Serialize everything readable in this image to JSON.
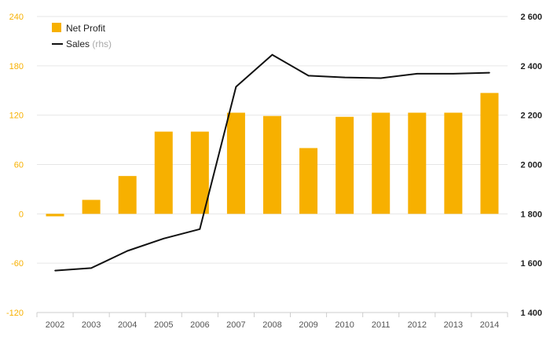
{
  "chart_data": {
    "type": "bar",
    "categories": [
      "2002",
      "2003",
      "2004",
      "2005",
      "2006",
      "2007",
      "2008",
      "2009",
      "2010",
      "2011",
      "2012",
      "2013",
      "2014"
    ],
    "series": [
      {
        "name": "Net Profit",
        "type": "bar",
        "axis": "left",
        "color": "#f7b000",
        "values": [
          -3,
          17,
          46,
          100,
          100,
          123,
          119,
          80,
          118,
          123,
          123,
          123,
          147
        ]
      },
      {
        "name": "Sales",
        "type": "line",
        "axis": "right",
        "color": "#111111",
        "values": [
          1570,
          1580,
          1650,
          1700,
          1738,
          2315,
          2445,
          2360,
          2353,
          2350,
          2368,
          2368,
          2372
        ]
      }
    ],
    "legend": {
      "position": "top-left",
      "items": [
        {
          "label": "Net Profit",
          "note": ""
        },
        {
          "label": "Sales",
          "note": "(rhs)"
        }
      ]
    },
    "yaxis_left": {
      "ticks": [
        "240",
        "180",
        "120",
        "60",
        "0",
        "-60",
        "-120"
      ],
      "range": [
        -120,
        240
      ],
      "color": "#f7b000"
    },
    "yaxis_right": {
      "ticks": [
        "2 600",
        "2 400",
        "2 200",
        "2 000",
        "1 800",
        "1 600",
        "1 400"
      ],
      "range": [
        1400,
        2600
      ]
    },
    "grid": true
  }
}
